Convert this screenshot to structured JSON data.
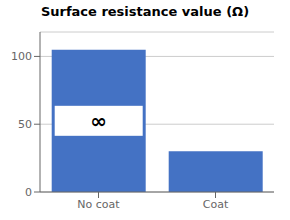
{
  "chart_data": {
    "type": "bar",
    "title": "Surface resistance value (Ω)",
    "categories": [
      "No coat",
      "Coat"
    ],
    "values": [
      105,
      30
    ],
    "color": "#4472C4",
    "ylim": [
      0,
      118
    ],
    "yticks": [
      0,
      50,
      100
    ],
    "grid": true,
    "annotations": [
      {
        "text": "∞",
        "category": "No coat"
      }
    ]
  }
}
